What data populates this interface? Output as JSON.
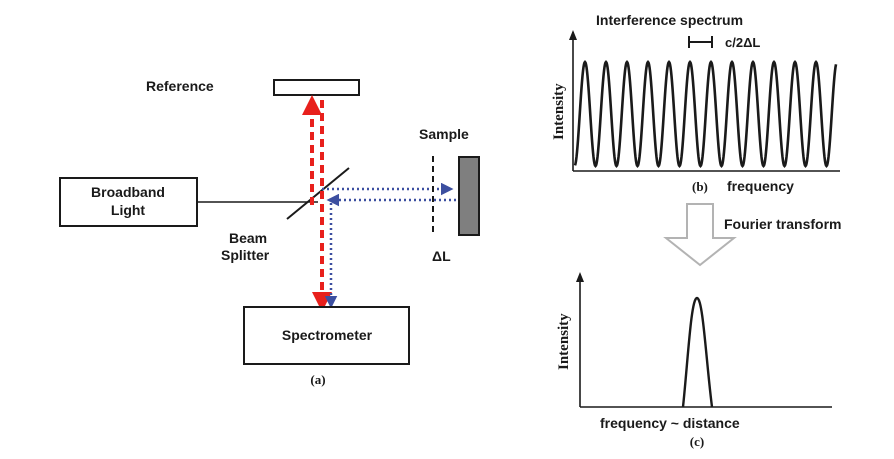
{
  "setup": {
    "reference_label": "Reference",
    "sample_label": "Sample",
    "source_label_line1": "Broadband",
    "source_label_line2": "Light",
    "splitter_label_line1": "Beam",
    "splitter_label_line2": "Splitter",
    "delta_label": "ΔL",
    "detector_label": "Spectrometer",
    "caption": "(a)",
    "reference_beam_color": "#e8201c",
    "sample_beam_color": "#3c4fa0"
  },
  "spectrum_panel": {
    "title": "Interference spectrum",
    "period_label": "c/2ΔL",
    "ylabel": "Intensity",
    "caption": "(b)",
    "xlabel": "frequency"
  },
  "transform": {
    "label": "Fourier transform"
  },
  "peak_panel": {
    "ylabel": "Intensity",
    "xlabel": "frequency ~ distance",
    "caption": "(c)"
  }
}
